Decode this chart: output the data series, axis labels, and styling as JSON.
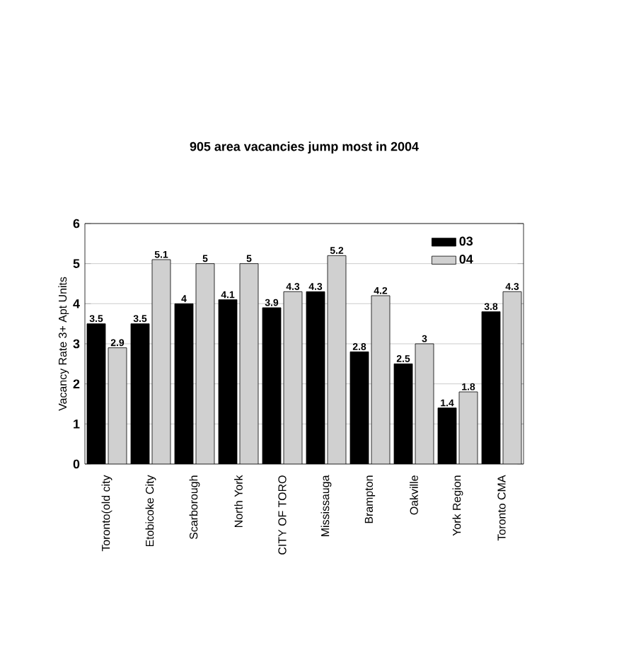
{
  "chart_data": {
    "type": "bar",
    "title": "905 area vacancies jump most in 2004",
    "ylabel": "Vacancy Rate 3+ Apt Units",
    "categories": [
      "Toronto(old city",
      "Etobicoke City",
      "Scarborough",
      "North York",
      "CITY OF TORO",
      "Mississauga",
      "Brampton",
      "Oakville",
      "York Region",
      "Toronto CMA"
    ],
    "series": [
      {
        "name": "03",
        "color": "#000000",
        "values": [
          3.5,
          3.5,
          4,
          4.1,
          3.9,
          4.3,
          2.8,
          2.5,
          1.4,
          3.8
        ]
      },
      {
        "name": "04",
        "color": "#d0d0d0",
        "values": [
          2.9,
          5.1,
          5,
          5,
          4.3,
          5.2,
          4.2,
          3,
          1.8,
          4.3
        ]
      }
    ],
    "ylim": [
      0,
      6
    ],
    "yticks": [
      0,
      1,
      2,
      3,
      4,
      5,
      6
    ],
    "grid": "y",
    "legend": "top right",
    "data_labels": true
  }
}
